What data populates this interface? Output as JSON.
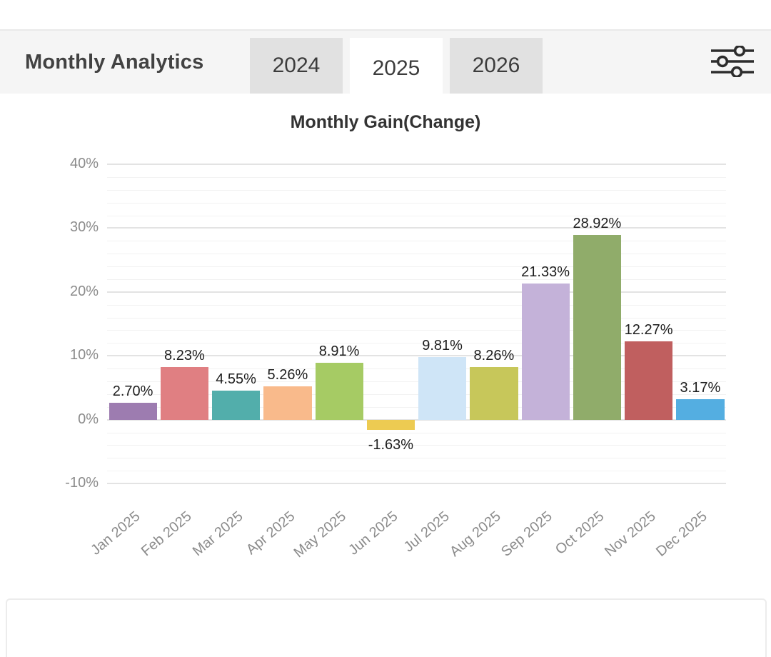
{
  "header": {
    "title": "Monthly Analytics",
    "tabs": [
      {
        "label": "2024",
        "active": false
      },
      {
        "label": "2025",
        "active": true
      },
      {
        "label": "2026",
        "active": false
      }
    ],
    "filter_icon": "tune-sliders-icon",
    "accent_colors": {
      "header_bg": "#f5f5f5",
      "inactive_tab_bg": "#e1e1e1",
      "active_tab_bg": "#ffffff"
    }
  },
  "chart_data": {
    "type": "bar",
    "title": "Monthly Gain(Change)",
    "xlabel": "",
    "ylabel": "",
    "legend": "none",
    "grid": "horizontal, minor every 2%, major every 10%",
    "y_axis": {
      "min": -10,
      "max": 40,
      "minor_step": 2,
      "major_step": 10,
      "ticks": [
        {
          "value": 40,
          "label": "40%"
        },
        {
          "value": 30,
          "label": "30%"
        },
        {
          "value": 20,
          "label": "20%"
        },
        {
          "value": 10,
          "label": "10%"
        },
        {
          "value": 0,
          "label": "0%"
        },
        {
          "value": -10,
          "label": "-10%"
        }
      ]
    },
    "categories": [
      "Jan 2025",
      "Feb 2025",
      "Mar 2025",
      "Apr 2025",
      "May 2025",
      "Jun 2025",
      "Jul 2025",
      "Aug 2025",
      "Sep 2025",
      "Oct 2025",
      "Nov 2025",
      "Dec 2025"
    ],
    "values": [
      2.7,
      8.23,
      4.55,
      5.26,
      8.91,
      -1.63,
      9.81,
      8.26,
      21.33,
      28.92,
      12.27,
      3.17
    ],
    "bars": [
      {
        "category": "Jan 2025",
        "value": 2.7,
        "label": "2.70%",
        "color": "#9d7cb0"
      },
      {
        "category": "Feb 2025",
        "value": 8.23,
        "label": "8.23%",
        "color": "#e07f82"
      },
      {
        "category": "Mar 2025",
        "value": 4.55,
        "label": "4.55%",
        "color": "#52aeab"
      },
      {
        "category": "Apr 2025",
        "value": 5.26,
        "label": "5.26%",
        "color": "#f9ba8b"
      },
      {
        "category": "May 2025",
        "value": 8.91,
        "label": "8.91%",
        "color": "#a6cb64"
      },
      {
        "category": "Jun 2025",
        "value": -1.63,
        "label": "-1.63%",
        "color": "#edcb52"
      },
      {
        "category": "Jul 2025",
        "value": 9.81,
        "label": "9.81%",
        "color": "#cfe5f7"
      },
      {
        "category": "Aug 2025",
        "value": 8.26,
        "label": "8.26%",
        "color": "#c7c75a"
      },
      {
        "category": "Sep 2025",
        "value": 21.33,
        "label": "21.33%",
        "color": "#c4b2d9"
      },
      {
        "category": "Oct 2025",
        "value": 28.92,
        "label": "28.92%",
        "color": "#90ac6a"
      },
      {
        "category": "Nov 2025",
        "value": 12.27,
        "label": "12.27%",
        "color": "#c05f5f"
      },
      {
        "category": "Dec 2025",
        "value": 3.17,
        "label": "3.17%",
        "color": "#54aee1"
      }
    ]
  }
}
